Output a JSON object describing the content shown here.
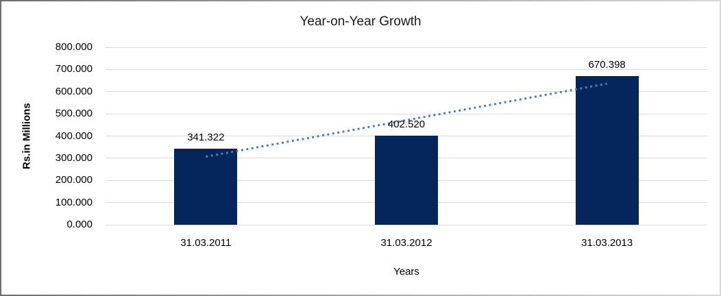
{
  "chart_data": {
    "type": "bar",
    "title": "Year-on-Year Growth",
    "xlabel": "Years",
    "ylabel": "Rs.in Millions",
    "categories": [
      "31.03.2011",
      "31.03.2012",
      "31.03.2013"
    ],
    "values": [
      341322,
      402520,
      670398
    ],
    "value_labels": [
      "341.322",
      "402.520",
      "670.398"
    ],
    "ylim": [
      0,
      800000
    ],
    "y_tick_step": 100000,
    "y_tick_labels": [
      "0.000",
      "100.000",
      "200.000",
      "300.000",
      "400.000",
      "500.000",
      "600.000",
      "700.000",
      "800.000"
    ],
    "grid": "horizontal",
    "legend": "none",
    "bar_color": "#05265d",
    "gridline_color": "#d9d9d9",
    "text_color": "#000000",
    "trendline": {
      "type": "linear",
      "style": "dotted",
      "color": "#4a7ebb",
      "start_value": 306900,
      "end_value": 636000
    }
  }
}
